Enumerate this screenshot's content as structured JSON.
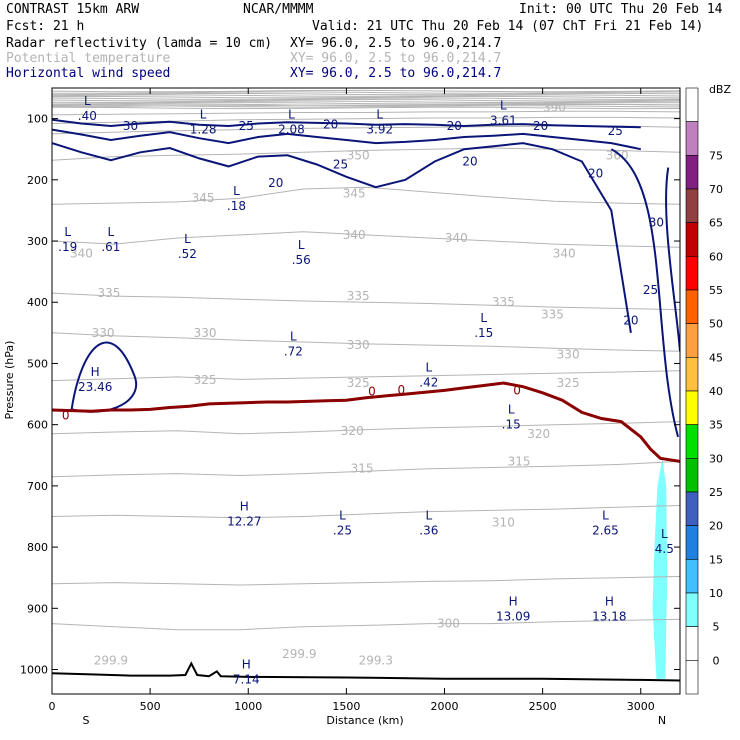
{
  "header": {
    "model": "CONTRAST 15km ARW",
    "source": "NCAR/MMMM",
    "init": "Init: 00 UTC Thu 20 Feb 14",
    "fcst": "Fcst:   21 h",
    "valid": "Valid: 21 UTC Thu 20 Feb 14 (07 ChT Fri 21 Feb 14)",
    "fields": [
      {
        "name": "Radar reflectivity (lamda = 10 cm)",
        "xy": "XY=  96.0,  2.5 to  96.0,214.7",
        "color": "#000000"
      },
      {
        "name": "Potential temperature",
        "xy": "XY=  96.0,  2.5 to  96.0,214.7",
        "color": "#b4b4b4"
      },
      {
        "name": "Horizontal wind speed",
        "xy": "XY=  96.0,  2.5 to  96.0,214.7",
        "color": "#000080"
      }
    ]
  },
  "colors": {
    "theta": "#b4b4b4",
    "wind": "#0a1578",
    "tropopause": "#8b0000",
    "terrain": "#000000",
    "cloud": "#80ffff"
  },
  "chart_data": {
    "type": "cross-section",
    "xlabel": "Distance (km)",
    "ylabel": "Pressure (hPa)",
    "xlim": [
      0,
      3200
    ],
    "ylim": [
      1040,
      50
    ],
    "x_ticks": [
      "0",
      "500",
      "1000",
      "1500",
      "2000",
      "2500",
      "3000"
    ],
    "x_tick_values": [
      0,
      500,
      1000,
      1500,
      2000,
      2500,
      3000
    ],
    "y_ticks": [
      "100",
      "200",
      "300",
      "400",
      "500",
      "600",
      "700",
      "800",
      "900",
      "1000"
    ],
    "y_tick_values": [
      100,
      200,
      300,
      400,
      500,
      600,
      700,
      800,
      900,
      1000
    ],
    "end_labels": {
      "left": "S",
      "right": "N"
    },
    "theta_levels": [
      {
        "value": 300,
        "p": [
          925,
          930,
          935,
          935,
          930,
          928,
          925,
          925,
          922,
          920,
          918
        ]
      },
      {
        "value": 305,
        "p": [
          860,
          858,
          860,
          862,
          860,
          858,
          856,
          855,
          852,
          850,
          848
        ]
      },
      {
        "value": 310,
        "p": [
          750,
          748,
          750,
          752,
          750,
          746,
          742,
          740,
          738,
          735,
          732
        ]
      },
      {
        "value": 315,
        "p": [
          685,
          682,
          680,
          683,
          680,
          676,
          672,
          670,
          668,
          665,
          660
        ]
      },
      {
        "value": 320,
        "p": [
          615,
          612,
          610,
          615,
          612,
          608,
          605,
          603,
          600,
          598,
          595
        ]
      },
      {
        "value": 325,
        "p": [
          528,
          525,
          522,
          526,
          524,
          522,
          520,
          518,
          516,
          514,
          512
        ]
      },
      {
        "value": 330,
        "p": [
          450,
          455,
          458,
          462,
          465,
          468,
          470,
          472,
          475,
          478,
          480
        ]
      },
      {
        "value": 335,
        "p": [
          385,
          390,
          392,
          395,
          398,
          400,
          402,
          405,
          408,
          410,
          412
        ]
      },
      {
        "value": 340,
        "p": [
          300,
          305,
          295,
          290,
          285,
          290,
          295,
          300,
          305,
          308,
          310
        ]
      },
      {
        "value": 345,
        "p": [
          240,
          238,
          236,
          230,
          215,
          212,
          220,
          228,
          235,
          238,
          240
        ]
      },
      {
        "value": 350,
        "p": [
          168,
          162,
          160,
          158,
          155,
          152,
          150,
          148,
          150,
          152,
          155
        ]
      },
      {
        "value": 360,
        "p": [
          125,
          122,
          120,
          118,
          116,
          115,
          114,
          113,
          112,
          112,
          114
        ]
      },
      {
        "value": 370,
        "p": [
          108,
          106,
          104,
          102,
          101,
          100,
          99,
          99,
          98,
          98,
          99
        ]
      },
      {
        "value": 380,
        "p": [
          94,
          93,
          92,
          91,
          90,
          90,
          89,
          89,
          88,
          88,
          89
        ]
      },
      {
        "value": 390,
        "p": [
          80,
          80,
          79,
          79,
          78,
          78,
          78,
          77,
          77,
          77,
          78
        ]
      }
    ],
    "theta_x": [
      0,
      320,
      640,
      960,
      1280,
      1600,
      1920,
      2240,
      2560,
      2880,
      3200
    ],
    "theta_labels": [
      {
        "text": "390",
        "x": 2560,
        "p": 82
      },
      {
        "text": "350",
        "x": 1560,
        "p": 160
      },
      {
        "text": "360",
        "x": 2880,
        "p": 160
      },
      {
        "text": "345",
        "x": 770,
        "p": 230
      },
      {
        "text": "345",
        "x": 1540,
        "p": 222
      },
      {
        "text": "340",
        "x": 150,
        "p": 320
      },
      {
        "text": "340",
        "x": 1540,
        "p": 290
      },
      {
        "text": "340",
        "x": 2060,
        "p": 295
      },
      {
        "text": "340",
        "x": 2610,
        "p": 320
      },
      {
        "text": "335",
        "x": 290,
        "p": 385
      },
      {
        "text": "335",
        "x": 1560,
        "p": 390
      },
      {
        "text": "335",
        "x": 2300,
        "p": 400
      },
      {
        "text": "335",
        "x": 2550,
        "p": 420
      },
      {
        "text": "330",
        "x": 260,
        "p": 450
      },
      {
        "text": "330",
        "x": 780,
        "p": 450
      },
      {
        "text": "330",
        "x": 1560,
        "p": 470
      },
      {
        "text": "330",
        "x": 2630,
        "p": 485
      },
      {
        "text": "325",
        "x": 780,
        "p": 527
      },
      {
        "text": "325",
        "x": 1560,
        "p": 532
      },
      {
        "text": "325",
        "x": 2630,
        "p": 532
      },
      {
        "text": "320",
        "x": 1530,
        "p": 610
      },
      {
        "text": "320",
        "x": 2480,
        "p": 615
      },
      {
        "text": "315",
        "x": 1580,
        "p": 672
      },
      {
        "text": "315",
        "x": 2380,
        "p": 660
      },
      {
        "text": "310",
        "x": 2300,
        "p": 760
      },
      {
        "text": "300",
        "x": 2020,
        "p": 925
      },
      {
        "text": "299.9",
        "x": 300,
        "p": 985
      },
      {
        "text": "299.9",
        "x": 1260,
        "p": 975
      },
      {
        "text": "299.3",
        "x": 1650,
        "p": 985
      }
    ],
    "wind_levels": [
      {
        "value": 30,
        "x": [
          0,
          150,
          300,
          450,
          600,
          750,
          900,
          1050,
          1200,
          1350,
          1500,
          1650,
          1800,
          1950,
          2100,
          2250,
          2400,
          2550,
          2700,
          2850,
          3000
        ],
        "p": [
          102,
          108,
          112,
          108,
          105,
          110,
          112,
          108,
          106,
          107,
          108,
          110,
          109,
          110,
          112,
          110,
          109,
          111,
          112,
          113,
          114
        ]
      },
      {
        "value": 25,
        "x": [
          0,
          150,
          300,
          450,
          600,
          750,
          900,
          1050,
          1200,
          1350,
          1500,
          1650,
          1800,
          1950,
          2100,
          2250,
          2400,
          2550,
          2700,
          2850,
          3000
        ],
        "p": [
          118,
          126,
          135,
          128,
          122,
          132,
          140,
          130,
          125,
          130,
          135,
          140,
          138,
          135,
          130,
          128,
          125,
          130,
          135,
          140,
          150
        ]
      },
      {
        "value": 20,
        "x": [
          0,
          150,
          300,
          450,
          600,
          750,
          900,
          1050,
          1200,
          1350,
          1500,
          1650,
          1800,
          1950,
          2100,
          2250,
          2400,
          2550,
          2700,
          2850,
          2950
        ],
        "p": [
          140,
          155,
          168,
          155,
          148,
          165,
          178,
          162,
          160,
          175,
          195,
          212,
          200,
          170,
          150,
          145,
          140,
          150,
          170,
          250,
          450
        ]
      }
    ],
    "wind_labels": [
      {
        "text": "30",
        "x": 400,
        "p": 112
      },
      {
        "text": "25",
        "x": 990,
        "p": 112
      },
      {
        "text": "20",
        "x": 1420,
        "p": 110
      },
      {
        "text": "20",
        "x": 2050,
        "p": 112
      },
      {
        "text": "20",
        "x": 2490,
        "p": 112
      },
      {
        "text": "25",
        "x": 2870,
        "p": 120
      },
      {
        "text": "25",
        "x": 1470,
        "p": 175
      },
      {
        "text": "20",
        "x": 1140,
        "p": 205
      },
      {
        "text": "20",
        "x": 2130,
        "p": 170
      },
      {
        "text": "20",
        "x": 2770,
        "p": 190
      },
      {
        "text": "30",
        "x": 3080,
        "p": 270
      },
      {
        "text": "25",
        "x": 3050,
        "p": 380
      },
      {
        "text": "20",
        "x": 2950,
        "p": 430
      }
    ],
    "extrema": [
      {
        "type": "L",
        "value": ".40",
        "x": 180,
        "p": 83
      },
      {
        "type": "L",
        "value": "1.28",
        "x": 770,
        "p": 105
      },
      {
        "type": "L",
        "value": "2.08",
        "x": 1220,
        "p": 105
      },
      {
        "type": "L",
        "value": "3.92",
        "x": 1670,
        "p": 105
      },
      {
        "type": "L",
        "value": "3.61",
        "x": 2300,
        "p": 90
      },
      {
        "type": "L",
        "value": ".18",
        "x": 940,
        "p": 230
      },
      {
        "type": "L",
        "value": ".19",
        "x": 80,
        "p": 297
      },
      {
        "type": "L",
        "value": ".61",
        "x": 300,
        "p": 297
      },
      {
        "type": "L",
        "value": ".52",
        "x": 690,
        "p": 308
      },
      {
        "type": "L",
        "value": ".56",
        "x": 1270,
        "p": 318
      },
      {
        "type": "L",
        "value": ".15",
        "x": 2200,
        "p": 437
      },
      {
        "type": "L",
        "value": ".72",
        "x": 1230,
        "p": 467
      },
      {
        "type": "H",
        "value": "23.46",
        "x": 220,
        "p": 525
      },
      {
        "type": "L",
        "value": ".42",
        "x": 1920,
        "p": 518
      },
      {
        "type": "L",
        "value": ".15",
        "x": 2340,
        "p": 587
      },
      {
        "type": "H",
        "value": "12.27",
        "x": 980,
        "p": 745
      },
      {
        "type": "L",
        "value": ".25",
        "x": 1480,
        "p": 760
      },
      {
        "type": "L",
        "value": ".36",
        "x": 1920,
        "p": 760
      },
      {
        "type": "L",
        "value": "2.65",
        "x": 2820,
        "p": 760
      },
      {
        "type": "L",
        "value": "4.5",
        "x": 3120,
        "p": 790
      },
      {
        "type": "H",
        "value": "13.09",
        "x": 2350,
        "p": 900
      },
      {
        "type": "H",
        "value": "13.18",
        "x": 2840,
        "p": 900
      },
      {
        "type": "H",
        "value": "7.14",
        "x": 990,
        "p": 1003
      }
    ],
    "tropopause": {
      "x": [
        0,
        100,
        200,
        300,
        400,
        500,
        600,
        700,
        800,
        900,
        1000,
        1100,
        1200,
        1300,
        1400,
        1500,
        1600,
        1700,
        1800,
        1900,
        2000,
        2100,
        2200,
        2300,
        2400,
        2500,
        2600,
        2700,
        2800,
        2900,
        3000,
        3050,
        3100,
        3200
      ],
      "p": [
        576,
        577,
        578,
        576,
        576,
        575,
        572,
        570,
        566,
        565,
        564,
        563,
        563,
        562,
        561,
        560,
        556,
        553,
        550,
        547,
        544,
        540,
        536,
        532,
        538,
        548,
        560,
        580,
        590,
        595,
        620,
        640,
        655,
        660
      ],
      "markers": [
        {
          "x": 70,
          "p": 585,
          "text": "0"
        },
        {
          "x": 1630,
          "p": 546,
          "text": "0"
        },
        {
          "x": 1780,
          "p": 543,
          "text": "0"
        },
        {
          "x": 2370,
          "p": 544,
          "text": "0"
        }
      ]
    },
    "terrain": {
      "x": [
        0,
        200,
        400,
        600,
        680,
        710,
        740,
        800,
        840,
        860,
        1000,
        1500,
        2000,
        2500,
        3000,
        3200
      ],
      "p": [
        1006,
        1008,
        1010,
        1010,
        1009,
        990,
        1009,
        1011,
        1003,
        1011,
        1012,
        1013,
        1015,
        1015,
        1017,
        1018
      ]
    },
    "colorbar": {
      "title": "dBZ",
      "levels": [
        "0",
        "5",
        "10",
        "15",
        "20",
        "25",
        "30",
        "35",
        "40",
        "45",
        "50",
        "55",
        "60",
        "65",
        "70",
        "75"
      ],
      "colors": [
        "#ffffff",
        "#ffffff",
        "#80ffff",
        "#40c0ff",
        "#2080e0",
        "#4060c0",
        "#00c000",
        "#00e000",
        "#ffff00",
        "#ffc040",
        "#ffa040",
        "#ff6000",
        "#ff0000",
        "#c00000",
        "#904040",
        "#802080",
        "#c080c0",
        "#ffffff"
      ]
    }
  }
}
